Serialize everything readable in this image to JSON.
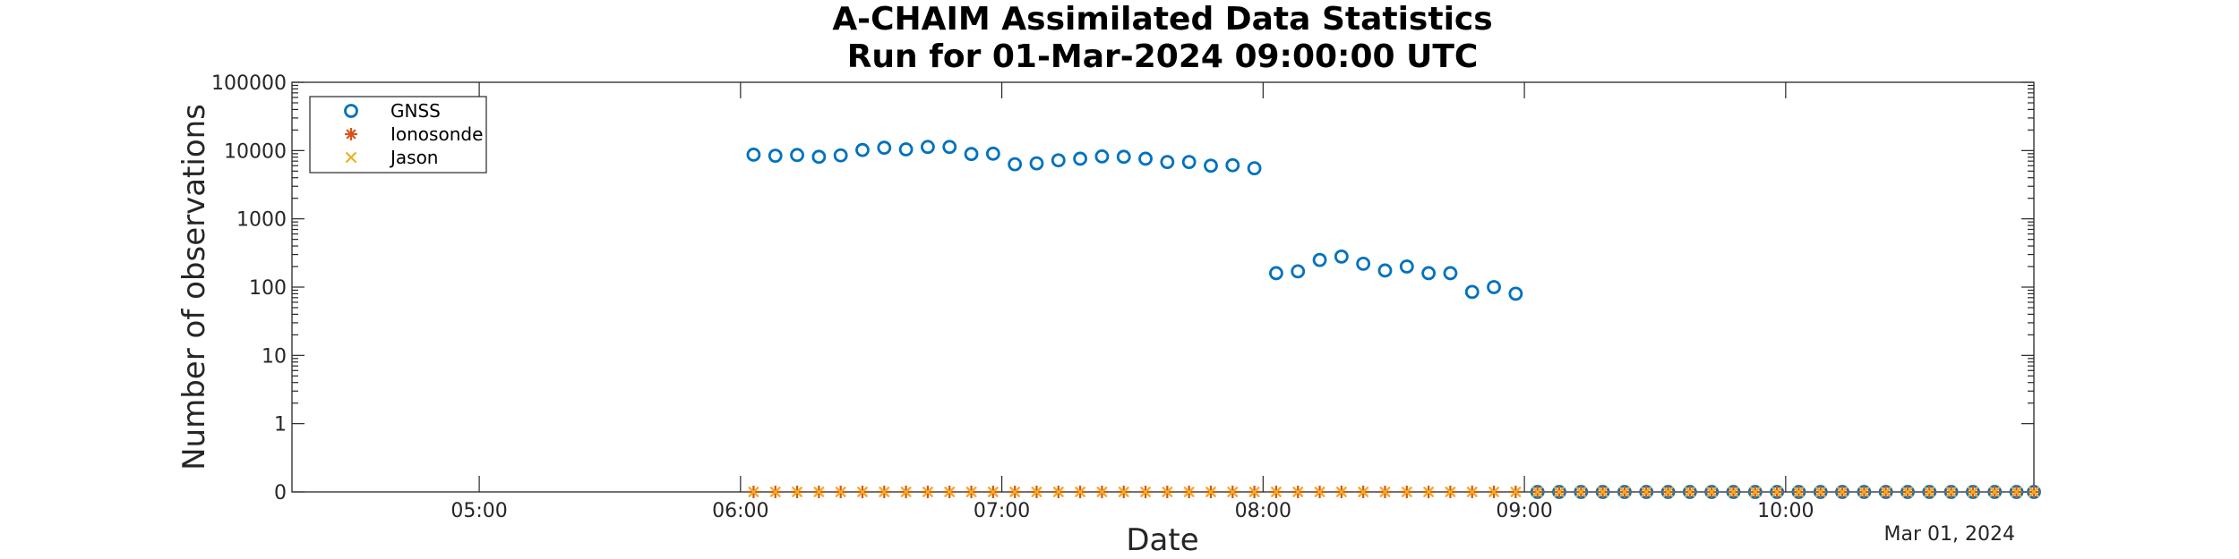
{
  "chart_data": {
    "type": "scatter",
    "title": [
      "A-CHAIM Assimilated Data Statistics",
      "Run for 01-Mar-2024 09:00:00 UTC"
    ],
    "xlabel": "Date",
    "ylabel": "Number of observations",
    "date_annotation": "Mar 01, 2024",
    "y_scale": "log",
    "x_range": [
      "04:17",
      "10:57"
    ],
    "y_ticks": [
      {
        "value": 0,
        "label": "0"
      },
      {
        "value": 1,
        "label": "1"
      },
      {
        "value": 10,
        "label": "10"
      },
      {
        "value": 100,
        "label": "100"
      },
      {
        "value": 1000,
        "label": "1000"
      },
      {
        "value": 10000,
        "label": "10000"
      },
      {
        "value": 100000,
        "label": "100000"
      }
    ],
    "x_ticks": [
      "05:00",
      "06:00",
      "07:00",
      "08:00",
      "09:00",
      "10:00"
    ],
    "grid": false,
    "legend": {
      "placement": "top-left",
      "entries": [
        "GNSS",
        "Ionosonde",
        "Jason"
      ]
    },
    "series": [
      {
        "name": "GNSS",
        "marker": "circle",
        "color": "#0072BD",
        "points": [
          [
            "06:03",
            8700
          ],
          [
            "06:08",
            8400
          ],
          [
            "06:13",
            8600
          ],
          [
            "06:18",
            8100
          ],
          [
            "06:23",
            8500
          ],
          [
            "06:28",
            10200
          ],
          [
            "06:33",
            11000
          ],
          [
            "06:38",
            10400
          ],
          [
            "06:43",
            11300
          ],
          [
            "06:48",
            11300
          ],
          [
            "06:53",
            8900
          ],
          [
            "06:58",
            9000
          ],
          [
            "07:03",
            6300
          ],
          [
            "07:08",
            6500
          ],
          [
            "07:13",
            7200
          ],
          [
            "07:18",
            7600
          ],
          [
            "07:23",
            8200
          ],
          [
            "07:28",
            8100
          ],
          [
            "07:33",
            7600
          ],
          [
            "07:38",
            6800
          ],
          [
            "07:43",
            6800
          ],
          [
            "07:48",
            6000
          ],
          [
            "07:53",
            6100
          ],
          [
            "07:58",
            5500
          ],
          [
            "08:03",
            160
          ],
          [
            "08:08",
            170
          ],
          [
            "08:13",
            250
          ],
          [
            "08:18",
            280
          ],
          [
            "08:23",
            220
          ],
          [
            "08:28",
            175
          ],
          [
            "08:33",
            200
          ],
          [
            "08:38",
            160
          ],
          [
            "08:43",
            160
          ],
          [
            "08:48",
            85
          ],
          [
            "08:53",
            100
          ],
          [
            "08:58",
            80
          ],
          [
            "09:03",
            0
          ],
          [
            "09:08",
            0
          ],
          [
            "09:13",
            0
          ],
          [
            "09:18",
            0
          ],
          [
            "09:23",
            0
          ],
          [
            "09:28",
            0
          ],
          [
            "09:33",
            0
          ],
          [
            "09:38",
            0
          ],
          [
            "09:43",
            0
          ],
          [
            "09:48",
            0
          ],
          [
            "09:53",
            0
          ],
          [
            "09:58",
            0
          ],
          [
            "10:03",
            0
          ],
          [
            "10:08",
            0
          ],
          [
            "10:13",
            0
          ],
          [
            "10:18",
            0
          ],
          [
            "10:23",
            0
          ],
          [
            "10:28",
            0
          ],
          [
            "10:33",
            0
          ],
          [
            "10:38",
            0
          ],
          [
            "10:43",
            0
          ],
          [
            "10:48",
            0
          ],
          [
            "10:53",
            0
          ],
          [
            "10:57",
            0
          ]
        ]
      },
      {
        "name": "Ionosonde",
        "marker": "asterisk",
        "color": "#D95319",
        "points": [
          [
            "06:03",
            0
          ],
          [
            "06:08",
            0
          ],
          [
            "06:13",
            0
          ],
          [
            "06:18",
            0
          ],
          [
            "06:23",
            0
          ],
          [
            "06:28",
            0
          ],
          [
            "06:33",
            0
          ],
          [
            "06:38",
            0
          ],
          [
            "06:43",
            0
          ],
          [
            "06:48",
            0
          ],
          [
            "06:53",
            0
          ],
          [
            "06:58",
            0
          ],
          [
            "07:03",
            0
          ],
          [
            "07:08",
            0
          ],
          [
            "07:13",
            0
          ],
          [
            "07:18",
            0
          ],
          [
            "07:23",
            0
          ],
          [
            "07:28",
            0
          ],
          [
            "07:33",
            0
          ],
          [
            "07:38",
            0
          ],
          [
            "07:43",
            0
          ],
          [
            "07:48",
            0
          ],
          [
            "07:53",
            0
          ],
          [
            "07:58",
            0
          ],
          [
            "08:03",
            0
          ],
          [
            "08:08",
            0
          ],
          [
            "08:13",
            0
          ],
          [
            "08:18",
            0
          ],
          [
            "08:23",
            0
          ],
          [
            "08:28",
            0
          ],
          [
            "08:33",
            0
          ],
          [
            "08:38",
            0
          ],
          [
            "08:43",
            0
          ],
          [
            "08:48",
            0
          ],
          [
            "08:53",
            0
          ],
          [
            "08:58",
            0
          ],
          [
            "09:03",
            0
          ],
          [
            "09:08",
            0
          ],
          [
            "09:13",
            0
          ],
          [
            "09:18",
            0
          ],
          [
            "09:23",
            0
          ],
          [
            "09:28",
            0
          ],
          [
            "09:33",
            0
          ],
          [
            "09:38",
            0
          ],
          [
            "09:43",
            0
          ],
          [
            "09:48",
            0
          ],
          [
            "09:53",
            0
          ],
          [
            "09:58",
            0
          ],
          [
            "10:03",
            0
          ],
          [
            "10:08",
            0
          ],
          [
            "10:13",
            0
          ],
          [
            "10:18",
            0
          ],
          [
            "10:23",
            0
          ],
          [
            "10:28",
            0
          ],
          [
            "10:33",
            0
          ],
          [
            "10:38",
            0
          ],
          [
            "10:43",
            0
          ],
          [
            "10:48",
            0
          ],
          [
            "10:53",
            0
          ],
          [
            "10:57",
            0
          ]
        ]
      },
      {
        "name": "Jason",
        "marker": "x",
        "color": "#EDB120",
        "points": [
          [
            "06:03",
            0
          ],
          [
            "06:08",
            0
          ],
          [
            "06:13",
            0
          ],
          [
            "06:18",
            0
          ],
          [
            "06:23",
            0
          ],
          [
            "06:28",
            0
          ],
          [
            "06:33",
            0
          ],
          [
            "06:38",
            0
          ],
          [
            "06:43",
            0
          ],
          [
            "06:48",
            0
          ],
          [
            "06:53",
            0
          ],
          [
            "06:58",
            0
          ],
          [
            "07:03",
            0
          ],
          [
            "07:08",
            0
          ],
          [
            "07:13",
            0
          ],
          [
            "07:18",
            0
          ],
          [
            "07:23",
            0
          ],
          [
            "07:28",
            0
          ],
          [
            "07:33",
            0
          ],
          [
            "07:38",
            0
          ],
          [
            "07:43",
            0
          ],
          [
            "07:48",
            0
          ],
          [
            "07:53",
            0
          ],
          [
            "07:58",
            0
          ],
          [
            "08:03",
            0
          ],
          [
            "08:08",
            0
          ],
          [
            "08:13",
            0
          ],
          [
            "08:18",
            0
          ],
          [
            "08:23",
            0
          ],
          [
            "08:28",
            0
          ],
          [
            "08:33",
            0
          ],
          [
            "08:38",
            0
          ],
          [
            "08:43",
            0
          ],
          [
            "08:48",
            0
          ],
          [
            "08:53",
            0
          ],
          [
            "08:58",
            0
          ],
          [
            "09:03",
            0
          ],
          [
            "09:08",
            0
          ],
          [
            "09:13",
            0
          ],
          [
            "09:18",
            0
          ],
          [
            "09:23",
            0
          ],
          [
            "09:28",
            0
          ],
          [
            "09:33",
            0
          ],
          [
            "09:38",
            0
          ],
          [
            "09:43",
            0
          ],
          [
            "09:48",
            0
          ],
          [
            "09:53",
            0
          ],
          [
            "09:58",
            0
          ],
          [
            "10:03",
            0
          ],
          [
            "10:08",
            0
          ],
          [
            "10:13",
            0
          ],
          [
            "10:18",
            0
          ],
          [
            "10:23",
            0
          ],
          [
            "10:28",
            0
          ],
          [
            "10:33",
            0
          ],
          [
            "10:38",
            0
          ],
          [
            "10:43",
            0
          ],
          [
            "10:48",
            0
          ],
          [
            "10:53",
            0
          ],
          [
            "10:57",
            0
          ]
        ]
      }
    ]
  }
}
